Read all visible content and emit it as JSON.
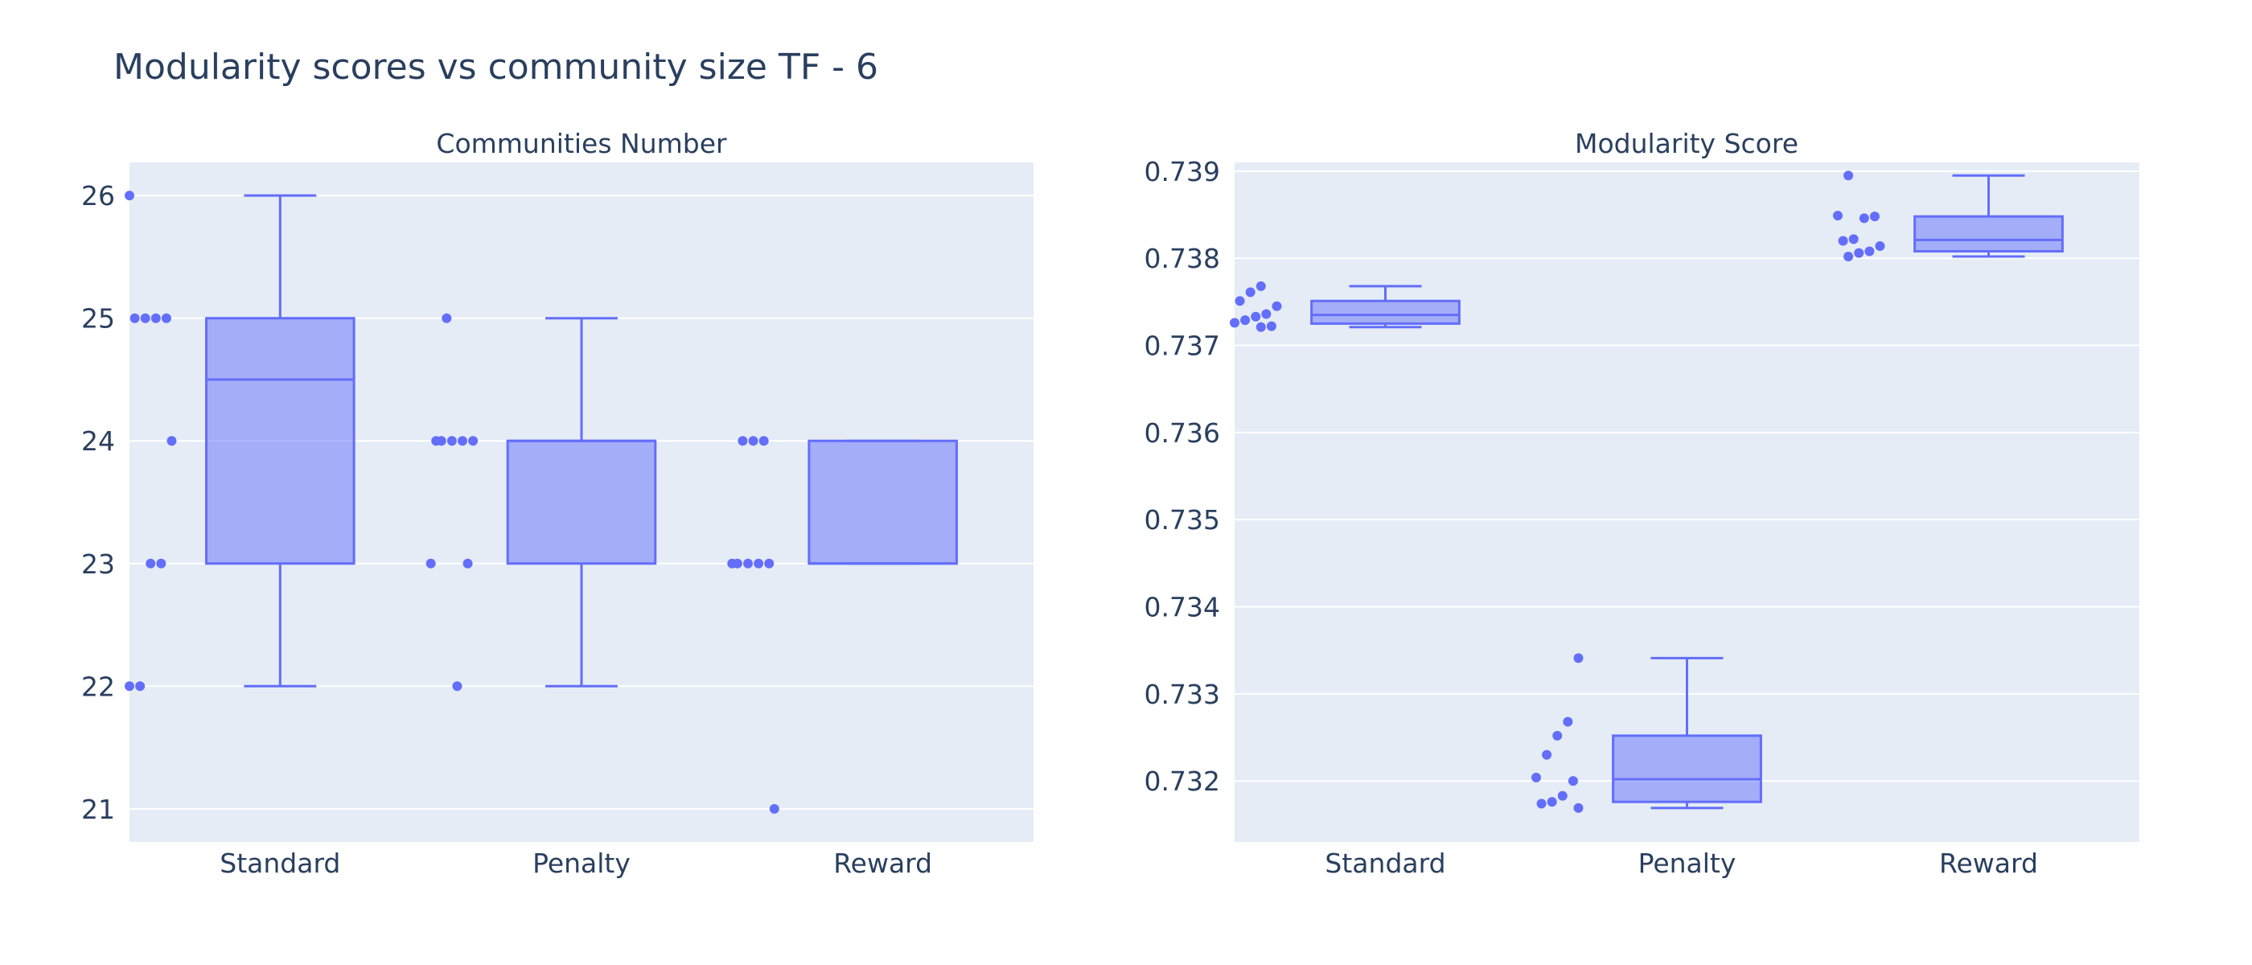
{
  "title": "Modularity scores vs community size TF - 6",
  "colors": {
    "plot_bg": "#e5ecf6",
    "grid": "#ffffff",
    "box_line": "#636efa",
    "box_fill": "rgba(99,110,250,0.5)",
    "point": "#636efa",
    "text": "#2a3f5f"
  },
  "chart_data": [
    {
      "type": "box",
      "title": "Communities Number",
      "categories": [
        "Standard",
        "Penalty",
        "Reward"
      ],
      "ylim": [
        20.73,
        26.27
      ],
      "yticks": [
        21,
        22,
        23,
        24,
        25,
        26
      ],
      "ytick_labels": [
        "21",
        "22",
        "23",
        "24",
        "25",
        "26"
      ],
      "grid": true,
      "boxpoints": "all",
      "series": [
        {
          "category": "Standard",
          "min": 22,
          "q1": 23,
          "median": 24.5,
          "q3": 25,
          "max": 26,
          "points": [
            26,
            25,
            25,
            25,
            25,
            24,
            23,
            23,
            22,
            22
          ]
        },
        {
          "category": "Penalty",
          "min": 22,
          "q1": 23,
          "median": 24,
          "q3": 24,
          "max": 25,
          "points": [
            25,
            24,
            24,
            24,
            24,
            24,
            23,
            23,
            22
          ]
        },
        {
          "category": "Reward",
          "min": 23,
          "q1": 23,
          "median": 23,
          "q3": 24,
          "max": 24,
          "points": [
            24,
            24,
            24,
            23,
            23,
            23,
            23,
            23,
            21
          ]
        }
      ]
    },
    {
      "type": "box",
      "title": "Modularity Score",
      "categories": [
        "Standard",
        "Penalty",
        "Reward"
      ],
      "ylim": [
        0.7313,
        0.7391
      ],
      "yticks": [
        0.732,
        0.733,
        0.734,
        0.735,
        0.736,
        0.737,
        0.738,
        0.739
      ],
      "ytick_labels": [
        "0.732",
        "0.733",
        "0.734",
        "0.735",
        "0.736",
        "0.737",
        "0.738",
        "0.739"
      ],
      "grid": true,
      "boxpoints": "all",
      "series": [
        {
          "category": "Standard",
          "min": 0.73721,
          "q1": 0.73725,
          "median": 0.73735,
          "q3": 0.73751,
          "max": 0.73768,
          "points": [
            0.73768,
            0.73761,
            0.73751,
            0.73745,
            0.73736,
            0.73733,
            0.73729,
            0.73726,
            0.73722,
            0.73721
          ]
        },
        {
          "category": "Penalty",
          "min": 0.73169,
          "q1": 0.73176,
          "median": 0.73202,
          "q3": 0.73252,
          "max": 0.73341,
          "points": [
            0.73341,
            0.73268,
            0.73252,
            0.7323,
            0.73204,
            0.732,
            0.73183,
            0.73176,
            0.73174,
            0.73169
          ]
        },
        {
          "category": "Reward",
          "min": 0.73802,
          "q1": 0.73808,
          "median": 0.73821,
          "q3": 0.73848,
          "max": 0.73895,
          "points": [
            0.73895,
            0.73849,
            0.73848,
            0.73846,
            0.73822,
            0.7382,
            0.73814,
            0.73808,
            0.73806,
            0.73802
          ]
        }
      ]
    }
  ]
}
